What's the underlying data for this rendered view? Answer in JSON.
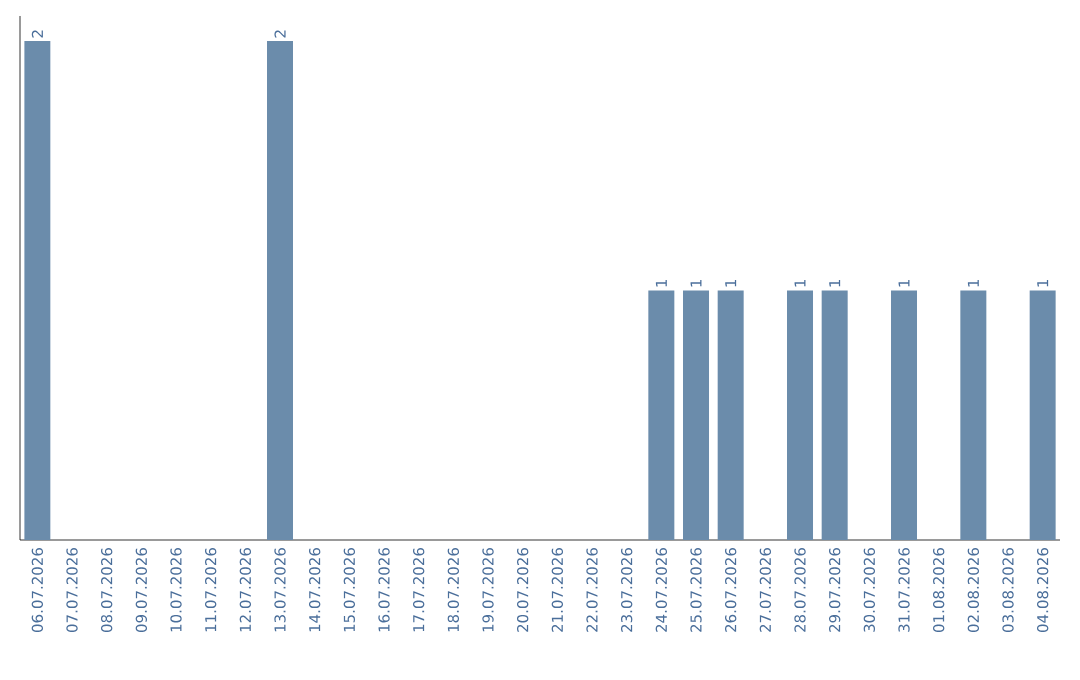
{
  "chart_data": {
    "type": "bar",
    "categories": [
      "06.07.2026",
      "07.07.2026",
      "08.07.2026",
      "09.07.2026",
      "10.07.2026",
      "11.07.2026",
      "12.07.2026",
      "13.07.2026",
      "14.07.2026",
      "15.07.2026",
      "16.07.2026",
      "17.07.2026",
      "18.07.2026",
      "19.07.2026",
      "20.07.2026",
      "21.07.2026",
      "22.07.2026",
      "23.07.2026",
      "24.07.2026",
      "25.07.2026",
      "26.07.2026",
      "27.07.2026",
      "28.07.2026",
      "29.07.2026",
      "30.07.2026",
      "31.07.2026",
      "01.08.2026",
      "02.08.2026",
      "03.08.2026",
      "04.08.2026"
    ],
    "values": [
      2,
      0,
      0,
      0,
      0,
      0,
      0,
      2,
      0,
      0,
      0,
      0,
      0,
      0,
      0,
      0,
      0,
      0,
      1,
      1,
      1,
      0,
      1,
      1,
      0,
      1,
      0,
      1,
      0,
      1
    ],
    "value_labels": [
      "2",
      null,
      null,
      null,
      null,
      null,
      null,
      "2",
      null,
      null,
      null,
      null,
      null,
      null,
      null,
      null,
      null,
      null,
      "1",
      "1",
      "1",
      null,
      "1",
      "1",
      null,
      "1",
      null,
      "1",
      null,
      "1"
    ],
    "color": "#6b8cab"
  }
}
